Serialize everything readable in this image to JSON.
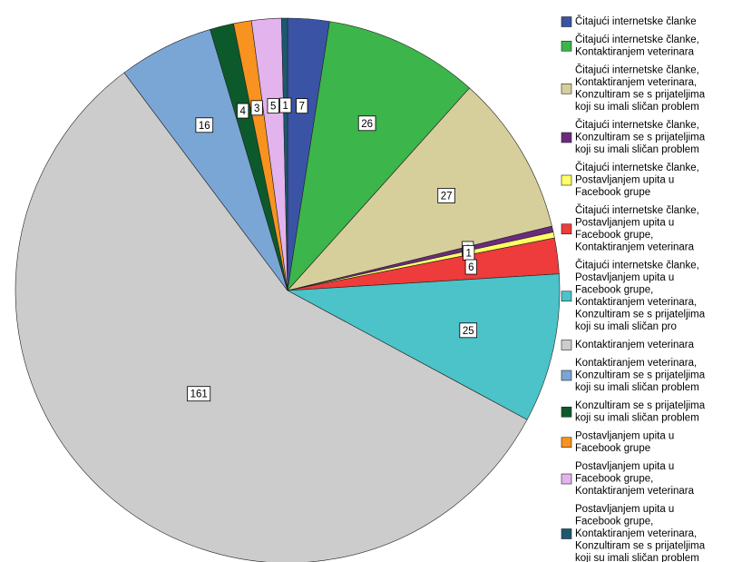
{
  "chart_data": {
    "type": "pie",
    "categories": [
      [
        "Čitajući internetske članke"
      ],
      [
        "Čitajući internetske članke,",
        "Kontaktiranjem veterinara"
      ],
      [
        "Čitajući internetske članke,",
        "Kontaktiranjem veterinara,",
        "Konzultiram se s prijateljima",
        "koji su imali sličan problem"
      ],
      [
        "Čitajući internetske članke,",
        "Konzultiram se s prijateljima",
        "koji su imali sličan problem"
      ],
      [
        "Čitajući internetske članke,",
        "Postavljanjem upita u",
        "Facebook grupe"
      ],
      [
        "Čitajući internetske članke,",
        "Postavljanjem upita u",
        "Facebook grupe,",
        "Kontaktiranjem veterinara"
      ],
      [
        "Čitajući internetske članke,",
        "Postavljanjem upita u",
        "Facebook grupe,",
        "Kontaktiranjem veterinara,",
        "Konzultiram se s prijateljima",
        "koji su imali sličan pro"
      ],
      [
        "Kontaktiranjem veterinara"
      ],
      [
        "Kontaktiranjem veterinara,",
        "Konzultiram se s prijateljima",
        "koji su imali sličan problem"
      ],
      [
        "Konzultiram se s prijateljima",
        "koji su imali sličan problem"
      ],
      [
        "Postavljanjem upita u",
        "Facebook grupe"
      ],
      [
        "Postavljanjem upita u",
        "Facebook grupe,",
        "Kontaktiranjem veterinara"
      ],
      [
        "Postavljanjem upita u",
        "Facebook grupe,",
        "Kontaktiranjem veterinara,",
        "Konzultiram se s prijateljima",
        "koji su imali sličan problem"
      ]
    ],
    "values": [
      7,
      26,
      27,
      1,
      1,
      6,
      25,
      161,
      16,
      4,
      3,
      5,
      1
    ],
    "colors": [
      "#3a53a4",
      "#3cb54a",
      "#d6cf9b",
      "#6b2b7d",
      "#ffff66",
      "#ee3b3b",
      "#4bc3c8",
      "#cccccc",
      "#7aa6d6",
      "#0c5a2b",
      "#f7931e",
      "#e3b3ee",
      "#1c5870"
    ]
  }
}
